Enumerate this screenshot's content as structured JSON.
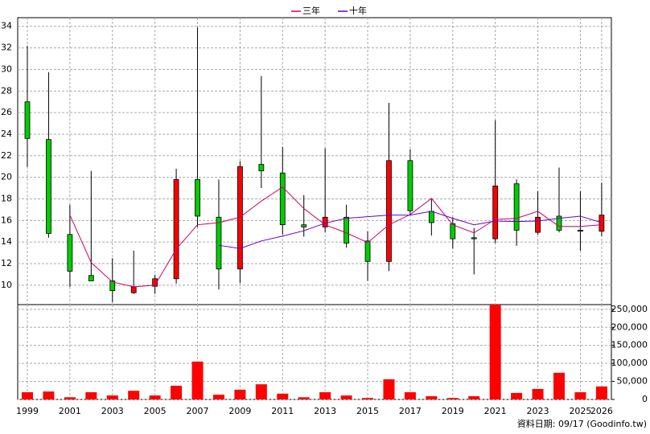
{
  "chart_data": [
    {
      "type": "candlestick",
      "categories": [
        "1999",
        null,
        "2001",
        null,
        "2003",
        null,
        "2005",
        null,
        "2007",
        null,
        "2009",
        null,
        "2011",
        null,
        "2013",
        null,
        "2015",
        null,
        "2017",
        null,
        "2019",
        null,
        "2021",
        null,
        "2023",
        null,
        "2025",
        "2026"
      ],
      "open": [
        27.0,
        23.5,
        14.7,
        10.9,
        10.4,
        9.3,
        9.9,
        10.6,
        19.8,
        16.3,
        11.5,
        21.2,
        20.4,
        15.6,
        15.4,
        16.3,
        14.1,
        12.2,
        21.55,
        16.85,
        15.7,
        14.4,
        14.3,
        19.4,
        14.9,
        16.4,
        15.1,
        15.0
      ],
      "high": [
        32.2,
        29.75,
        17.45,
        20.6,
        12.5,
        13.2,
        10.97,
        20.8,
        33.9,
        19.8,
        21.5,
        29.4,
        22.8,
        18.35,
        22.7,
        17.45,
        15.0,
        26.9,
        22.6,
        18.0,
        16.3,
        15.3,
        25.3,
        19.8,
        18.7,
        20.9,
        18.7,
        19.5
      ],
      "low": [
        20.96,
        14.4,
        9.85,
        10.4,
        8.4,
        9.2,
        9.2,
        10.15,
        15.4,
        9.6,
        10.2,
        19.0,
        14.7,
        14.5,
        14.9,
        13.5,
        10.4,
        11.3,
        16.5,
        14.6,
        13.4,
        11.0,
        13.9,
        13.65,
        14.7,
        14.9,
        13.2,
        14.55
      ],
      "close": [
        23.6,
        14.8,
        11.3,
        10.4,
        9.5,
        9.85,
        10.6,
        19.8,
        16.4,
        11.5,
        21.0,
        20.6,
        15.6,
        15.4,
        16.3,
        13.9,
        12.2,
        21.55,
        16.9,
        15.8,
        14.3,
        14.3,
        19.2,
        15.1,
        16.3,
        15.1,
        15.0,
        16.5
      ],
      "up_color": "#ff0000",
      "down_color": "#00cc00",
      "series": [
        {
          "name": "三年",
          "color": "#cc0066",
          "values": [
            null,
            null,
            16.5,
            12.1,
            10.3,
            9.85,
            10.0,
            13.35,
            15.6,
            15.8,
            16.3,
            17.8,
            19.1,
            17.1,
            15.6,
            14.85,
            13.95,
            15.6,
            16.55,
            18.05,
            15.6,
            14.85,
            16.1,
            16.2,
            16.85,
            15.45,
            15.45,
            15.6
          ]
        },
        {
          "name": "十年",
          "color": "#6600cc",
          "values": [
            null,
            null,
            null,
            null,
            null,
            null,
            null,
            null,
            null,
            13.7,
            13.4,
            14.1,
            14.55,
            15.05,
            15.75,
            16.2,
            16.35,
            16.5,
            16.5,
            16.85,
            16.2,
            15.6,
            15.95,
            15.9,
            15.95,
            16.2,
            16.4,
            15.8
          ]
        }
      ],
      "ylim": [
        8.2,
        34.8
      ],
      "yticks": [
        10,
        12,
        14,
        16,
        18,
        20,
        22,
        24,
        26,
        28,
        30,
        32,
        34
      ],
      "grid": true,
      "legend": "top"
    },
    {
      "type": "bar",
      "values": [
        20000,
        22000,
        6000,
        20000,
        11000,
        24000,
        11000,
        38000,
        105000,
        13000,
        27000,
        42000,
        16000,
        6000,
        20000,
        11000,
        4000,
        56000,
        20000,
        9000,
        4000,
        9000,
        263000,
        18000,
        29000,
        74000,
        20000,
        36000
      ],
      "color": "#ff0000",
      "ylim": [
        0,
        263000
      ],
      "yticks": [
        0,
        {
          "value": 50000,
          "label": "50,000"
        },
        {
          "value": 100000,
          "label": "100,000"
        },
        {
          "value": 150000,
          "label": "150,000"
        },
        {
          "value": 200000,
          "label": "200,000"
        },
        {
          "value": 250000,
          "label": "250,000"
        }
      ],
      "grid": true
    }
  ],
  "footer": "資料日期: 09/17 (Goodinfo.tw)"
}
